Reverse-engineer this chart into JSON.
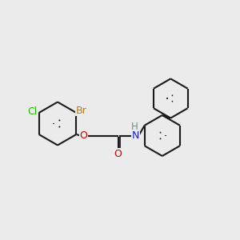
{
  "background": "#ebebeb",
  "bond_color": "#1a1a1a",
  "bond_lw": 1.5,
  "cl_color": "#22bb00",
  "br_color": "#cc7700",
  "o_color": "#cc0000",
  "n_color": "#1a1acc",
  "h_color": "#4a9a9a",
  "font_size": 9.0,
  "xlim": [
    -0.5,
    9.5
  ],
  "ylim": [
    2.0,
    8.5
  ]
}
